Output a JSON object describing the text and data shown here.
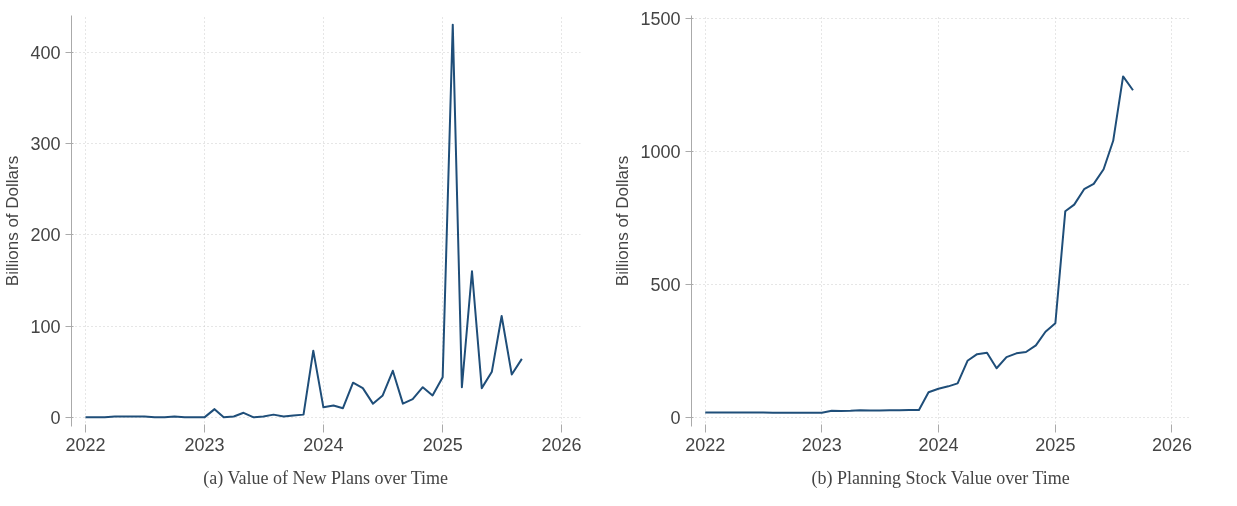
{
  "chart_data": [
    {
      "type": "line",
      "title": "(a) Value of New Plans over Time",
      "ylabel": "Billions of Dollars",
      "x": [
        "2022-01",
        "2022-02",
        "2022-03",
        "2022-04",
        "2022-05",
        "2022-06",
        "2022-07",
        "2022-08",
        "2022-09",
        "2022-10",
        "2022-11",
        "2022-12",
        "2023-01",
        "2023-02",
        "2023-03",
        "2023-04",
        "2023-05",
        "2023-06",
        "2023-07",
        "2023-08",
        "2023-09",
        "2023-10",
        "2023-11",
        "2023-12",
        "2024-01",
        "2024-02",
        "2024-03",
        "2024-04",
        "2024-05",
        "2024-06",
        "2024-07",
        "2024-08",
        "2024-09",
        "2024-10",
        "2024-11",
        "2024-12",
        "2025-01",
        "2025-02",
        "2025-03",
        "2025-04",
        "2025-05",
        "2025-06",
        "2025-07",
        "2025-08",
        "2025-09"
      ],
      "series": [
        {
          "color": "#1f4e79",
          "values": [
            0,
            0,
            0,
            1,
            1,
            1,
            1,
            0,
            0,
            1,
            0,
            0,
            0,
            9,
            0,
            1,
            5,
            0,
            1,
            3,
            1,
            2,
            3,
            73,
            11,
            13,
            10,
            38,
            32,
            15,
            24,
            51,
            15,
            20,
            33,
            24,
            44,
            430,
            33,
            160,
            32,
            50,
            111,
            47,
            64
          ]
        }
      ],
      "xlim": [
        "2021-11-19",
        "2026-02-28"
      ],
      "xticks": [
        "2022",
        "2023",
        "2024",
        "2025",
        "2026"
      ],
      "ylim": [
        -10,
        440
      ],
      "yticks": [
        0,
        100,
        200,
        300,
        400
      ],
      "grid": true,
      "line_style": "solid"
    },
    {
      "type": "line",
      "title": "(b) Planning Stock Value over Time",
      "ylabel": "Billions of Dollars",
      "x": [
        "2022-01",
        "2022-02",
        "2022-03",
        "2022-04",
        "2022-05",
        "2022-06",
        "2022-07",
        "2022-08",
        "2022-09",
        "2022-10",
        "2022-11",
        "2022-12",
        "2023-01",
        "2023-02",
        "2023-03",
        "2023-04",
        "2023-05",
        "2023-06",
        "2023-07",
        "2023-08",
        "2023-09",
        "2023-10",
        "2023-11",
        "2023-12",
        "2024-01",
        "2024-02",
        "2024-03",
        "2024-04",
        "2024-05",
        "2024-06",
        "2024-07",
        "2024-08",
        "2024-09",
        "2024-10",
        "2024-11",
        "2024-12",
        "2025-01",
        "2025-02",
        "2025-03",
        "2025-04",
        "2025-05",
        "2025-06",
        "2025-07",
        "2025-08",
        "2025-09"
      ],
      "series": [
        {
          "color": "#1f4e79",
          "values": [
            18,
            18,
            18,
            18,
            18,
            18,
            18,
            17,
            17,
            17,
            17,
            17,
            17,
            24,
            23,
            24,
            26,
            25,
            25,
            26,
            26,
            27,
            27,
            94,
            107,
            116,
            127,
            212,
            237,
            242,
            184,
            226,
            240,
            245,
            270,
            321,
            353,
            774,
            799,
            857,
            877,
            932,
            1039,
            1281,
            1229
          ]
        }
      ],
      "xlim": [
        "2021-11-19",
        "2026-02-28"
      ],
      "xticks": [
        "2022",
        "2023",
        "2024",
        "2025",
        "2026"
      ],
      "ylim": [
        -35,
        1510
      ],
      "yticks": [
        0,
        500,
        1000,
        1500
      ],
      "grid": true,
      "line_style": "solid"
    }
  ]
}
